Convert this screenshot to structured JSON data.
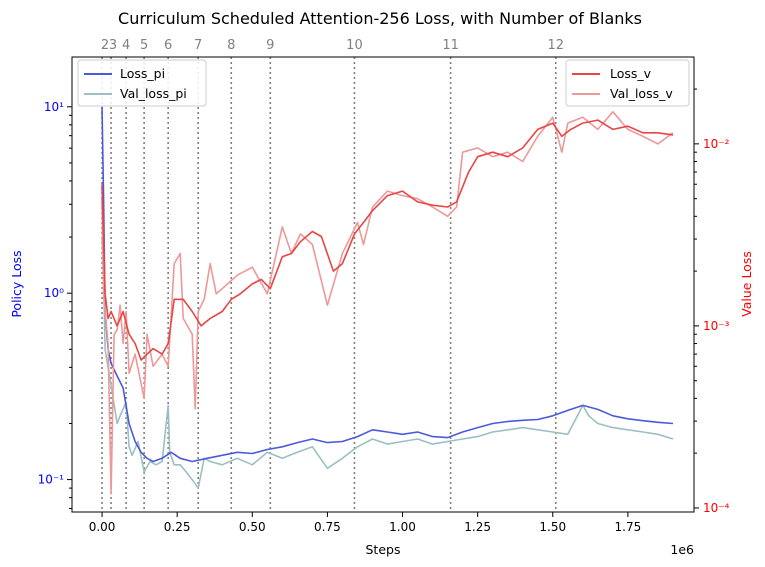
{
  "chart_data": {
    "type": "line",
    "title": "Curriculum Scheduled Attention-256 Loss, with Number of Blanks",
    "xlabel": "Steps",
    "x_multiplier_label": "1e6",
    "x_tick_labels": [
      "0.00",
      "0.25",
      "0.50",
      "0.75",
      "1.00",
      "1.25",
      "1.50",
      "1.75"
    ],
    "x_ticks": [
      0,
      0.25,
      0.5,
      0.75,
      1.0,
      1.25,
      1.5,
      1.75
    ],
    "xlim": [
      -0.1,
      1.97
    ],
    "left_axis": {
      "label": "Policy Loss",
      "label_color": "#0000ff",
      "scale": "log",
      "ylim": [
        0.067,
        18.5
      ],
      "ticks": [
        0.1,
        1,
        10
      ],
      "tick_labels": [
        "10⁻¹",
        "10⁰",
        "10¹"
      ],
      "tick_color": "#0000ff"
    },
    "right_axis": {
      "label": "Value Loss",
      "label_color": "#ff0000",
      "scale": "log",
      "ylim": [
        9.5e-05,
        0.03
      ],
      "ticks": [
        0.0001,
        0.001,
        0.01
      ],
      "tick_labels": [
        "10⁻⁴",
        "10⁻³",
        "10⁻²"
      ],
      "tick_color": "#ff0000"
    },
    "curriculum_markers": {
      "x": [
        0.0,
        0.03,
        0.08,
        0.14,
        0.22,
        0.32,
        0.43,
        0.56,
        0.84,
        1.16,
        1.51
      ],
      "labels": [
        "2",
        "3",
        "4",
        "5",
        "6",
        "7",
        "8",
        "9",
        "10",
        "11",
        "12"
      ]
    },
    "legend_left": {
      "placement": "upper-left",
      "entries": [
        "Loss_pi",
        "Val_loss_pi"
      ]
    },
    "legend_right": {
      "placement": "upper-right",
      "entries": [
        "Loss_v",
        "Val_loss_v"
      ]
    },
    "series": [
      {
        "name": "Loss_pi",
        "axis": "left",
        "color": "#4a5ada",
        "points": [
          [
            0.0,
            10.0
          ],
          [
            0.005,
            3.2
          ],
          [
            0.01,
            0.8
          ],
          [
            0.02,
            0.5
          ],
          [
            0.03,
            0.42
          ],
          [
            0.05,
            0.36
          ],
          [
            0.07,
            0.31
          ],
          [
            0.09,
            0.2
          ],
          [
            0.11,
            0.16
          ],
          [
            0.13,
            0.14
          ],
          [
            0.15,
            0.13
          ],
          [
            0.17,
            0.125
          ],
          [
            0.2,
            0.13
          ],
          [
            0.23,
            0.14
          ],
          [
            0.26,
            0.13
          ],
          [
            0.3,
            0.125
          ],
          [
            0.35,
            0.13
          ],
          [
            0.4,
            0.135
          ],
          [
            0.45,
            0.14
          ],
          [
            0.5,
            0.138
          ],
          [
            0.55,
            0.145
          ],
          [
            0.6,
            0.15
          ],
          [
            0.65,
            0.158
          ],
          [
            0.7,
            0.165
          ],
          [
            0.75,
            0.158
          ],
          [
            0.8,
            0.16
          ],
          [
            0.85,
            0.17
          ],
          [
            0.9,
            0.185
          ],
          [
            0.95,
            0.18
          ],
          [
            1.0,
            0.175
          ],
          [
            1.05,
            0.18
          ],
          [
            1.1,
            0.17
          ],
          [
            1.15,
            0.168
          ],
          [
            1.2,
            0.18
          ],
          [
            1.25,
            0.19
          ],
          [
            1.3,
            0.2
          ],
          [
            1.35,
            0.205
          ],
          [
            1.4,
            0.208
          ],
          [
            1.45,
            0.21
          ],
          [
            1.5,
            0.22
          ],
          [
            1.55,
            0.235
          ],
          [
            1.6,
            0.25
          ],
          [
            1.65,
            0.238
          ],
          [
            1.7,
            0.22
          ],
          [
            1.75,
            0.212
          ],
          [
            1.8,
            0.207
          ],
          [
            1.85,
            0.203
          ],
          [
            1.9,
            0.2
          ]
        ]
      },
      {
        "name": "Val_loss_pi",
        "axis": "left",
        "color": "#9bbfc2",
        "points": [
          [
            0.0,
            2.0
          ],
          [
            0.005,
            1.2
          ],
          [
            0.01,
            0.5
          ],
          [
            0.03,
            0.32
          ],
          [
            0.05,
            0.2
          ],
          [
            0.06,
            0.22
          ],
          [
            0.08,
            0.26
          ],
          [
            0.09,
            0.15
          ],
          [
            0.1,
            0.135
          ],
          [
            0.12,
            0.16
          ],
          [
            0.14,
            0.11
          ],
          [
            0.16,
            0.125
          ],
          [
            0.18,
            0.12
          ],
          [
            0.2,
            0.125
          ],
          [
            0.22,
            0.25
          ],
          [
            0.225,
            0.14
          ],
          [
            0.24,
            0.12
          ],
          [
            0.26,
            0.12
          ],
          [
            0.28,
            0.11
          ],
          [
            0.31,
            0.095
          ],
          [
            0.32,
            0.09
          ],
          [
            0.34,
            0.13
          ],
          [
            0.36,
            0.125
          ],
          [
            0.4,
            0.12
          ],
          [
            0.45,
            0.13
          ],
          [
            0.5,
            0.12
          ],
          [
            0.55,
            0.14
          ],
          [
            0.6,
            0.13
          ],
          [
            0.65,
            0.14
          ],
          [
            0.7,
            0.15
          ],
          [
            0.75,
            0.115
          ],
          [
            0.8,
            0.13
          ],
          [
            0.85,
            0.15
          ],
          [
            0.9,
            0.165
          ],
          [
            0.95,
            0.155
          ],
          [
            1.0,
            0.16
          ],
          [
            1.05,
            0.165
          ],
          [
            1.1,
            0.155
          ],
          [
            1.15,
            0.16
          ],
          [
            1.2,
            0.165
          ],
          [
            1.25,
            0.17
          ],
          [
            1.3,
            0.18
          ],
          [
            1.35,
            0.185
          ],
          [
            1.4,
            0.19
          ],
          [
            1.45,
            0.185
          ],
          [
            1.5,
            0.18
          ],
          [
            1.55,
            0.175
          ],
          [
            1.6,
            0.25
          ],
          [
            1.62,
            0.22
          ],
          [
            1.65,
            0.2
          ],
          [
            1.7,
            0.19
          ],
          [
            1.75,
            0.185
          ],
          [
            1.8,
            0.18
          ],
          [
            1.85,
            0.175
          ],
          [
            1.9,
            0.165
          ]
        ]
      },
      {
        "name": "Loss_v",
        "axis": "right",
        "color": "#e84545",
        "points": [
          [
            0.0,
            0.006
          ],
          [
            0.01,
            0.0015
          ],
          [
            0.02,
            0.0011
          ],
          [
            0.03,
            0.0012
          ],
          [
            0.05,
            0.001
          ],
          [
            0.07,
            0.0012
          ],
          [
            0.09,
            0.0009
          ],
          [
            0.11,
            0.0008
          ],
          [
            0.13,
            0.00065
          ],
          [
            0.15,
            0.0007
          ],
          [
            0.17,
            0.00075
          ],
          [
            0.2,
            0.0007
          ],
          [
            0.22,
            0.0008
          ],
          [
            0.24,
            0.0014
          ],
          [
            0.27,
            0.0014
          ],
          [
            0.3,
            0.0012
          ],
          [
            0.33,
            0.001
          ],
          [
            0.36,
            0.0011
          ],
          [
            0.4,
            0.0012
          ],
          [
            0.43,
            0.0014
          ],
          [
            0.46,
            0.0015
          ],
          [
            0.5,
            0.0017
          ],
          [
            0.53,
            0.0018
          ],
          [
            0.56,
            0.0016
          ],
          [
            0.6,
            0.0024
          ],
          [
            0.63,
            0.0025
          ],
          [
            0.66,
            0.0029
          ],
          [
            0.7,
            0.0033
          ],
          [
            0.73,
            0.0031
          ],
          [
            0.77,
            0.002
          ],
          [
            0.8,
            0.0022
          ],
          [
            0.84,
            0.0032
          ],
          [
            0.87,
            0.0037
          ],
          [
            0.9,
            0.0043
          ],
          [
            0.95,
            0.0052
          ],
          [
            1.0,
            0.0055
          ],
          [
            1.05,
            0.0048
          ],
          [
            1.1,
            0.0046
          ],
          [
            1.15,
            0.0045
          ],
          [
            1.18,
            0.0048
          ],
          [
            1.22,
            0.007
          ],
          [
            1.25,
            0.0085
          ],
          [
            1.3,
            0.009
          ],
          [
            1.35,
            0.0085
          ],
          [
            1.4,
            0.0095
          ],
          [
            1.45,
            0.012
          ],
          [
            1.5,
            0.013
          ],
          [
            1.53,
            0.011
          ],
          [
            1.56,
            0.012
          ],
          [
            1.6,
            0.013
          ],
          [
            1.65,
            0.0135
          ],
          [
            1.7,
            0.012
          ],
          [
            1.75,
            0.0125
          ],
          [
            1.8,
            0.0115
          ],
          [
            1.85,
            0.0115
          ],
          [
            1.9,
            0.0112
          ]
        ]
      },
      {
        "name": "Val_loss_v",
        "axis": "right",
        "color": "#ee9898",
        "points": [
          [
            0.0,
            0.005
          ],
          [
            0.005,
            0.0015
          ],
          [
            0.01,
            0.0012
          ],
          [
            0.02,
            0.0008
          ],
          [
            0.03,
            0.00012
          ],
          [
            0.04,
            0.0009
          ],
          [
            0.05,
            0.00095
          ],
          [
            0.06,
            0.0013
          ],
          [
            0.07,
            0.0008
          ],
          [
            0.08,
            0.0012
          ],
          [
            0.09,
            0.00055
          ],
          [
            0.11,
            0.0007
          ],
          [
            0.14,
            0.0004
          ],
          [
            0.15,
            0.0009
          ],
          [
            0.17,
            0.0006
          ],
          [
            0.2,
            0.0007
          ],
          [
            0.22,
            0.0006
          ],
          [
            0.24,
            0.0022
          ],
          [
            0.26,
            0.0025
          ],
          [
            0.27,
            0.0011
          ],
          [
            0.3,
            0.0009
          ],
          [
            0.31,
            0.00035
          ],
          [
            0.32,
            0.0012
          ],
          [
            0.34,
            0.0014
          ],
          [
            0.36,
            0.0022
          ],
          [
            0.38,
            0.0015
          ],
          [
            0.4,
            0.0016
          ],
          [
            0.45,
            0.0019
          ],
          [
            0.5,
            0.0021
          ],
          [
            0.55,
            0.0015
          ],
          [
            0.6,
            0.0035
          ],
          [
            0.63,
            0.0025
          ],
          [
            0.66,
            0.0032
          ],
          [
            0.7,
            0.0028
          ],
          [
            0.75,
            0.0013
          ],
          [
            0.8,
            0.0025
          ],
          [
            0.85,
            0.0037
          ],
          [
            0.87,
            0.0028
          ],
          [
            0.9,
            0.0045
          ],
          [
            0.95,
            0.0055
          ],
          [
            1.0,
            0.0052
          ],
          [
            1.05,
            0.005
          ],
          [
            1.1,
            0.0045
          ],
          [
            1.15,
            0.004
          ],
          [
            1.18,
            0.0045
          ],
          [
            1.2,
            0.009
          ],
          [
            1.25,
            0.0095
          ],
          [
            1.3,
            0.0085
          ],
          [
            1.35,
            0.009
          ],
          [
            1.4,
            0.008
          ],
          [
            1.45,
            0.011
          ],
          [
            1.5,
            0.014
          ],
          [
            1.53,
            0.009
          ],
          [
            1.55,
            0.013
          ],
          [
            1.6,
            0.014
          ],
          [
            1.65,
            0.012
          ],
          [
            1.7,
            0.015
          ],
          [
            1.75,
            0.012
          ],
          [
            1.8,
            0.011
          ],
          [
            1.85,
            0.01
          ],
          [
            1.9,
            0.0115
          ]
        ]
      }
    ]
  }
}
